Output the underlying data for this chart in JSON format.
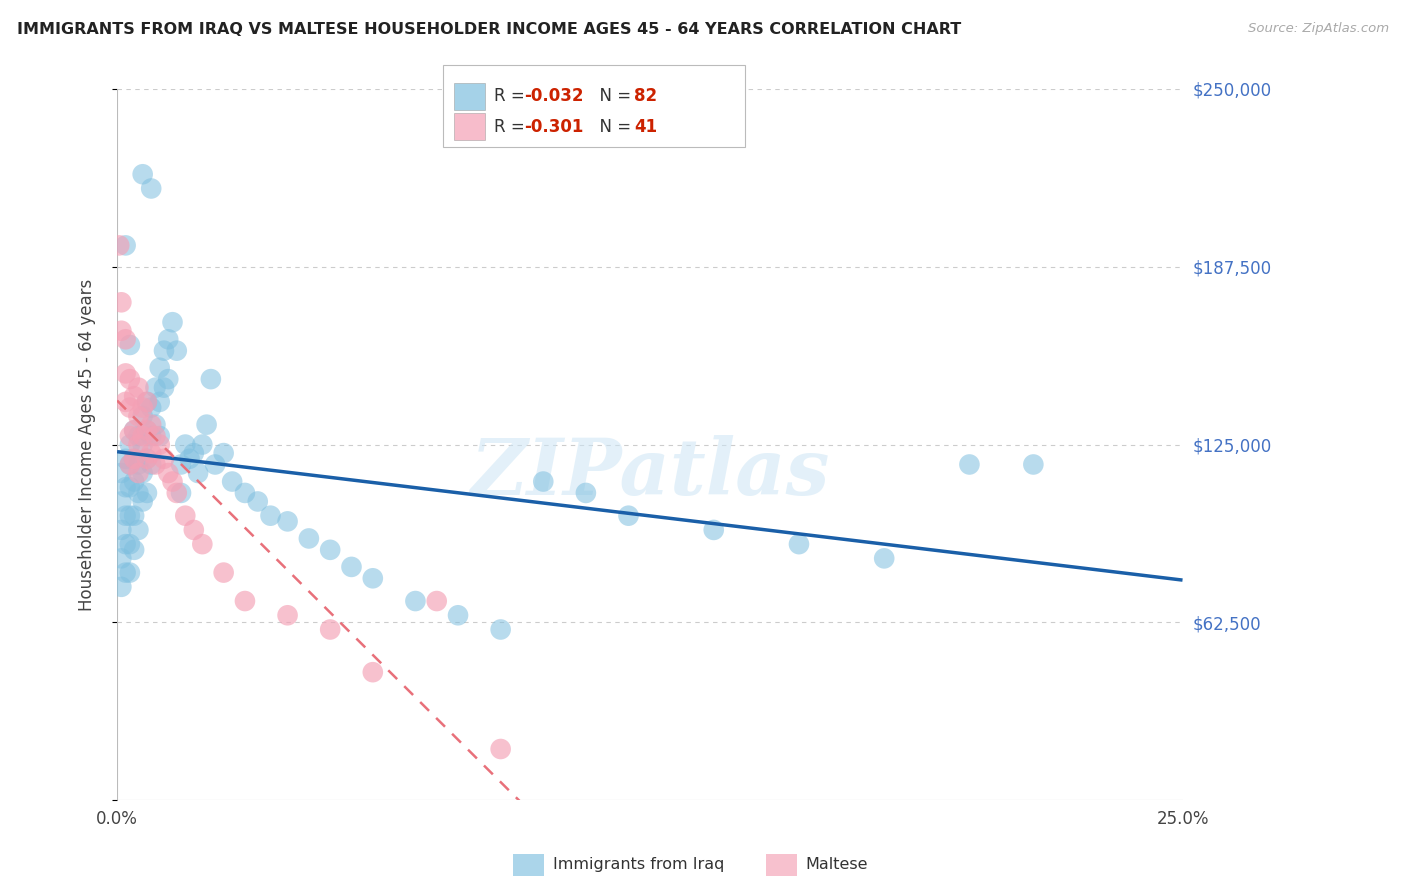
{
  "title": "IMMIGRANTS FROM IRAQ VS MALTESE HOUSEHOLDER INCOME AGES 45 - 64 YEARS CORRELATION CHART",
  "source": "Source: ZipAtlas.com",
  "ylabel": "Householder Income Ages 45 - 64 years",
  "xlim": [
    0.0,
    0.25
  ],
  "ylim": [
    0,
    250000
  ],
  "yticks": [
    0,
    62500,
    125000,
    187500,
    250000
  ],
  "ytick_labels": [
    "",
    "$62,500",
    "$125,000",
    "$187,500",
    "$250,000"
  ],
  "xtick_labels": [
    "0.0%",
    "25.0%"
  ],
  "grid_color": "#cccccc",
  "background_color": "#ffffff",
  "blue_color": "#7fbfdf",
  "pink_color": "#f4a0b5",
  "blue_line_color": "#1a5fa8",
  "pink_line_color": "#e8707a",
  "legend_r_blue": "-0.032",
  "legend_n_blue": "82",
  "legend_r_pink": "-0.301",
  "legend_n_pink": "41",
  "legend_label_blue": "Immigrants from Iraq",
  "legend_label_pink": "Maltese",
  "watermark": "ZIPatlas",
  "iraq_x": [
    0.001,
    0.001,
    0.001,
    0.001,
    0.001,
    0.002,
    0.002,
    0.002,
    0.002,
    0.002,
    0.003,
    0.003,
    0.003,
    0.003,
    0.003,
    0.003,
    0.004,
    0.004,
    0.004,
    0.004,
    0.004,
    0.005,
    0.005,
    0.005,
    0.005,
    0.006,
    0.006,
    0.006,
    0.006,
    0.007,
    0.007,
    0.007,
    0.007,
    0.008,
    0.008,
    0.008,
    0.009,
    0.009,
    0.01,
    0.01,
    0.01,
    0.011,
    0.011,
    0.012,
    0.012,
    0.013,
    0.014,
    0.015,
    0.015,
    0.016,
    0.017,
    0.018,
    0.019,
    0.02,
    0.021,
    0.022,
    0.023,
    0.025,
    0.027,
    0.03,
    0.033,
    0.036,
    0.04,
    0.045,
    0.05,
    0.055,
    0.06,
    0.07,
    0.08,
    0.09,
    0.1,
    0.11,
    0.12,
    0.14,
    0.16,
    0.18,
    0.2,
    0.215,
    0.006,
    0.008,
    0.002,
    0.003
  ],
  "iraq_y": [
    115000,
    105000,
    95000,
    85000,
    75000,
    120000,
    110000,
    100000,
    90000,
    80000,
    125000,
    118000,
    110000,
    100000,
    90000,
    80000,
    130000,
    120000,
    112000,
    100000,
    88000,
    128000,
    118000,
    108000,
    95000,
    135000,
    125000,
    115000,
    105000,
    140000,
    130000,
    120000,
    108000,
    138000,
    128000,
    118000,
    145000,
    132000,
    152000,
    140000,
    128000,
    158000,
    145000,
    162000,
    148000,
    168000,
    158000,
    118000,
    108000,
    125000,
    120000,
    122000,
    115000,
    125000,
    132000,
    148000,
    118000,
    122000,
    112000,
    108000,
    105000,
    100000,
    98000,
    92000,
    88000,
    82000,
    78000,
    70000,
    65000,
    60000,
    112000,
    108000,
    100000,
    95000,
    90000,
    85000,
    118000,
    118000,
    220000,
    215000,
    195000,
    160000
  ],
  "maltese_x": [
    0.0005,
    0.001,
    0.001,
    0.002,
    0.002,
    0.002,
    0.003,
    0.003,
    0.003,
    0.003,
    0.004,
    0.004,
    0.004,
    0.005,
    0.005,
    0.005,
    0.005,
    0.006,
    0.006,
    0.007,
    0.007,
    0.007,
    0.008,
    0.008,
    0.009,
    0.009,
    0.01,
    0.011,
    0.012,
    0.013,
    0.014,
    0.016,
    0.018,
    0.02,
    0.025,
    0.03,
    0.04,
    0.05,
    0.06,
    0.075,
    0.09
  ],
  "maltese_y": [
    195000,
    175000,
    165000,
    162000,
    150000,
    140000,
    148000,
    138000,
    128000,
    118000,
    142000,
    130000,
    120000,
    145000,
    135000,
    125000,
    115000,
    138000,
    128000,
    140000,
    130000,
    120000,
    132000,
    122000,
    128000,
    118000,
    125000,
    120000,
    115000,
    112000,
    108000,
    100000,
    95000,
    90000,
    80000,
    70000,
    65000,
    60000,
    45000,
    70000,
    18000
  ]
}
